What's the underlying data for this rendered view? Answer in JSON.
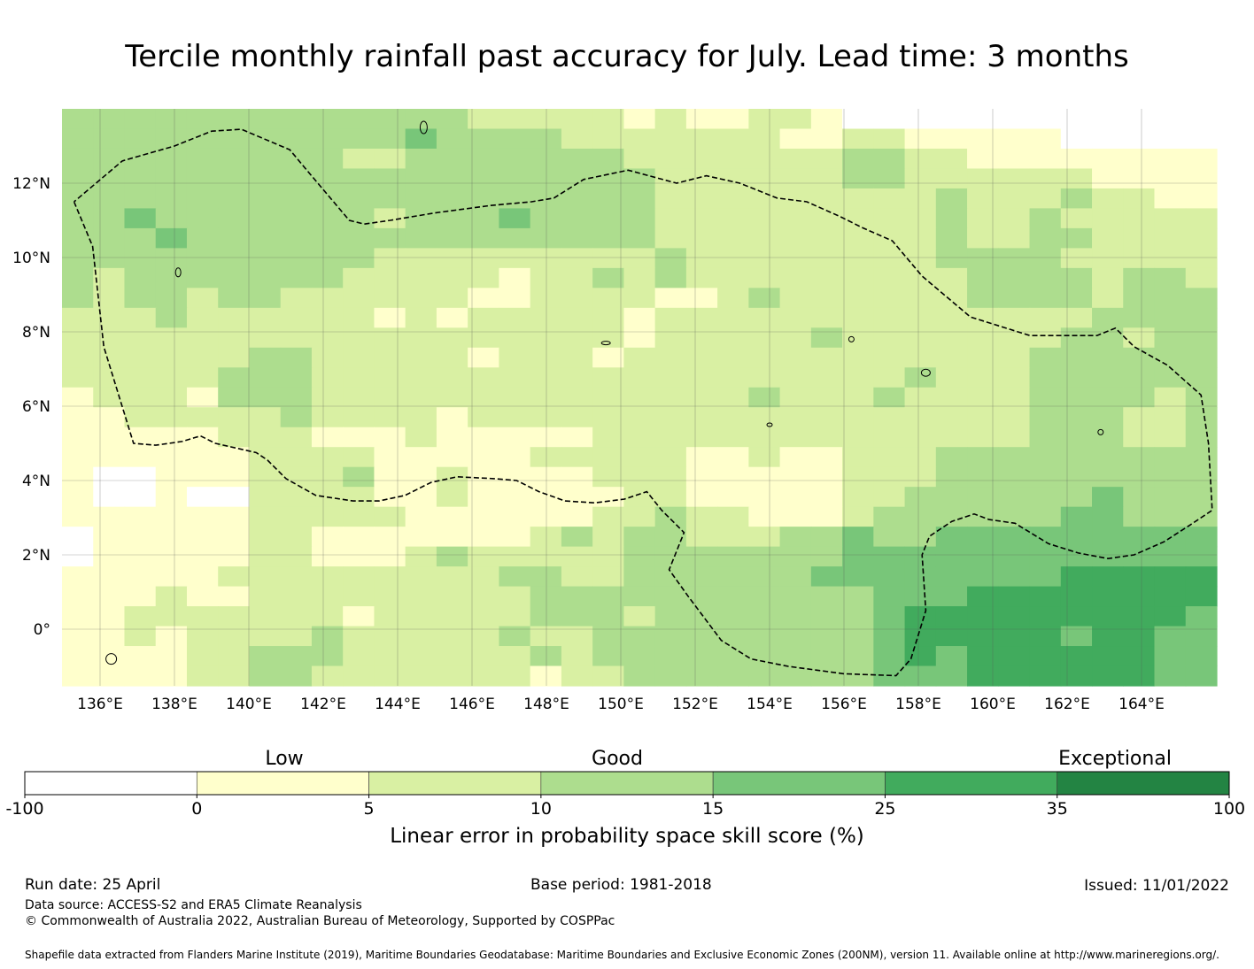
{
  "title": "Tercile monthly rainfall past accuracy for July. Lead time: 3 months",
  "map": {
    "lon_range": [
      135,
      166
    ],
    "lat_range": [
      -1.5,
      14
    ],
    "lon_ticks": [
      "136°E",
      "138°E",
      "140°E",
      "142°E",
      "144°E",
      "146°E",
      "148°E",
      "150°E",
      "152°E",
      "154°E",
      "156°E",
      "158°E",
      "160°E",
      "162°E",
      "164°E"
    ],
    "lat_ticks": [
      "12°N",
      "10°N",
      "8°N",
      "6°N",
      "4°N",
      "2°N",
      "0°"
    ],
    "boundary_path_lonlat": [
      [
        135.3,
        11.5
      ],
      [
        135.8,
        10.3
      ],
      [
        136.1,
        7.6
      ],
      [
        136.9,
        5.0
      ],
      [
        137.5,
        4.95
      ],
      [
        138.2,
        5.05
      ],
      [
        138.7,
        5.2
      ],
      [
        139.1,
        5.0
      ],
      [
        140.2,
        4.75
      ],
      [
        140.5,
        4.55
      ],
      [
        141.0,
        4.05
      ],
      [
        141.8,
        3.6
      ],
      [
        142.8,
        3.45
      ],
      [
        143.5,
        3.45
      ],
      [
        144.2,
        3.6
      ],
      [
        144.9,
        3.95
      ],
      [
        145.6,
        4.1
      ],
      [
        146.6,
        4.05
      ],
      [
        147.2,
        4.0
      ],
      [
        147.8,
        3.7
      ],
      [
        148.5,
        3.45
      ],
      [
        149.3,
        3.4
      ],
      [
        150.1,
        3.5
      ],
      [
        150.7,
        3.7
      ],
      [
        151.1,
        3.2
      ],
      [
        151.7,
        2.6
      ],
      [
        151.3,
        1.6
      ],
      [
        151.8,
        0.9
      ],
      [
        152.7,
        -0.3
      ],
      [
        153.5,
        -0.8
      ],
      [
        154.5,
        -1.0
      ],
      [
        156.0,
        -1.2
      ],
      [
        157.4,
        -1.25
      ],
      [
        157.8,
        -0.8
      ],
      [
        158.2,
        0.5
      ],
      [
        158.1,
        2.0
      ],
      [
        158.3,
        2.5
      ],
      [
        158.9,
        2.9
      ],
      [
        159.5,
        3.1
      ],
      [
        159.9,
        2.95
      ],
      [
        160.6,
        2.85
      ],
      [
        161.5,
        2.3
      ],
      [
        162.3,
        2.05
      ],
      [
        163.1,
        1.9
      ],
      [
        163.8,
        2.0
      ],
      [
        164.6,
        2.35
      ],
      [
        165.3,
        2.8
      ],
      [
        165.9,
        3.2
      ],
      [
        165.8,
        5.0
      ],
      [
        165.6,
        6.3
      ],
      [
        164.7,
        7.1
      ],
      [
        163.8,
        7.6
      ],
      [
        163.3,
        8.1
      ],
      [
        162.8,
        7.9
      ],
      [
        161.0,
        7.9
      ],
      [
        159.4,
        8.4
      ],
      [
        158.1,
        9.5
      ],
      [
        157.3,
        10.45
      ],
      [
        156.5,
        10.8
      ],
      [
        155.9,
        11.1
      ],
      [
        155.0,
        11.5
      ],
      [
        154.2,
        11.6
      ],
      [
        153.2,
        12.0
      ],
      [
        152.3,
        12.2
      ],
      [
        151.5,
        12.0
      ],
      [
        150.2,
        12.35
      ],
      [
        149.0,
        12.1
      ],
      [
        148.2,
        11.6
      ],
      [
        147.6,
        11.5
      ],
      [
        146.5,
        11.4
      ],
      [
        145.0,
        11.2
      ],
      [
        143.8,
        11.0
      ],
      [
        143.1,
        10.9
      ],
      [
        142.7,
        11.0
      ],
      [
        141.6,
        12.3
      ],
      [
        141.1,
        12.9
      ],
      [
        139.8,
        13.45
      ],
      [
        139.0,
        13.4
      ],
      [
        138.0,
        13.0
      ],
      [
        136.6,
        12.6
      ],
      [
        135.3,
        11.5
      ]
    ],
    "grid_cells": [
      [
        3,
        3,
        3,
        3,
        3,
        3,
        3,
        3,
        3,
        3,
        3,
        3,
        3,
        2,
        2,
        2,
        2,
        2,
        1,
        2,
        1,
        1,
        2,
        2,
        1,
        0,
        0,
        0,
        0,
        0,
        0,
        0,
        0,
        0,
        0,
        0,
        0
      ],
      [
        3,
        3,
        3,
        3,
        3,
        3,
        3,
        3,
        3,
        3,
        3,
        4,
        3,
        3,
        3,
        3,
        2,
        2,
        2,
        2,
        2,
        2,
        2,
        1,
        1,
        2,
        2,
        1,
        1,
        1,
        1,
        1,
        0,
        0,
        0,
        0,
        0
      ],
      [
        3,
        3,
        3,
        3,
        3,
        3,
        3,
        3,
        3,
        2,
        2,
        3,
        3,
        3,
        3,
        3,
        3,
        3,
        2,
        2,
        2,
        2,
        2,
        2,
        2,
        3,
        3,
        2,
        2,
        1,
        1,
        1,
        1,
        1,
        1,
        1,
        1
      ],
      [
        3,
        3,
        3,
        3,
        3,
        3,
        3,
        3,
        3,
        3,
        3,
        3,
        3,
        3,
        3,
        3,
        3,
        3,
        3,
        2,
        2,
        2,
        2,
        2,
        2,
        3,
        3,
        2,
        2,
        2,
        2,
        2,
        2,
        1,
        1,
        1,
        1
      ],
      [
        3,
        3,
        3,
        3,
        3,
        3,
        3,
        3,
        3,
        3,
        3,
        3,
        3,
        3,
        3,
        3,
        3,
        3,
        3,
        2,
        2,
        2,
        2,
        2,
        2,
        2,
        2,
        2,
        3,
        2,
        2,
        2,
        3,
        2,
        2,
        1,
        1
      ],
      [
        3,
        3,
        4,
        3,
        3,
        3,
        3,
        3,
        3,
        3,
        2,
        3,
        3,
        3,
        4,
        3,
        3,
        3,
        3,
        2,
        2,
        2,
        2,
        2,
        2,
        2,
        2,
        2,
        3,
        2,
        2,
        3,
        2,
        2,
        2,
        2,
        2
      ],
      [
        3,
        3,
        3,
        4,
        3,
        3,
        3,
        3,
        3,
        3,
        3,
        3,
        3,
        3,
        3,
        3,
        3,
        3,
        3,
        2,
        2,
        2,
        2,
        2,
        2,
        2,
        2,
        2,
        3,
        2,
        2,
        3,
        3,
        2,
        2,
        2,
        2
      ],
      [
        3,
        3,
        3,
        3,
        3,
        3,
        3,
        3,
        3,
        3,
        2,
        2,
        2,
        2,
        2,
        2,
        2,
        2,
        2,
        3,
        2,
        2,
        2,
        2,
        2,
        2,
        2,
        2,
        3,
        3,
        3,
        3,
        2,
        2,
        2,
        2,
        2
      ],
      [
        3,
        2,
        3,
        3,
        3,
        3,
        3,
        3,
        3,
        2,
        2,
        2,
        2,
        2,
        1,
        2,
        2,
        3,
        2,
        3,
        2,
        2,
        2,
        2,
        2,
        2,
        2,
        2,
        2,
        3,
        3,
        3,
        3,
        2,
        3,
        3,
        2
      ],
      [
        3,
        2,
        3,
        3,
        2,
        3,
        3,
        2,
        2,
        2,
        2,
        2,
        2,
        1,
        1,
        2,
        2,
        2,
        2,
        1,
        1,
        2,
        3,
        2,
        2,
        2,
        2,
        2,
        2,
        3,
        3,
        3,
        3,
        2,
        3,
        3,
        3
      ],
      [
        2,
        2,
        2,
        3,
        2,
        2,
        2,
        2,
        2,
        2,
        1,
        2,
        1,
        2,
        2,
        2,
        2,
        2,
        1,
        2,
        2,
        2,
        2,
        2,
        2,
        2,
        2,
        2,
        2,
        2,
        2,
        2,
        2,
        3,
        3,
        3,
        3
      ],
      [
        2,
        2,
        2,
        2,
        2,
        2,
        2,
        2,
        2,
        2,
        2,
        2,
        2,
        2,
        2,
        2,
        2,
        2,
        1,
        2,
        2,
        2,
        2,
        2,
        3,
        2,
        2,
        2,
        2,
        2,
        2,
        2,
        3,
        3,
        2,
        3,
        3
      ],
      [
        2,
        2,
        2,
        2,
        2,
        2,
        3,
        3,
        2,
        2,
        2,
        2,
        2,
        1,
        2,
        2,
        2,
        1,
        2,
        2,
        2,
        2,
        2,
        2,
        2,
        2,
        2,
        2,
        2,
        2,
        2,
        3,
        3,
        3,
        3,
        3,
        3
      ],
      [
        2,
        2,
        2,
        2,
        2,
        3,
        3,
        3,
        2,
        2,
        2,
        2,
        2,
        2,
        2,
        2,
        2,
        2,
        2,
        2,
        2,
        2,
        2,
        2,
        2,
        2,
        2,
        3,
        2,
        2,
        2,
        3,
        3,
        3,
        3,
        3,
        3
      ],
      [
        1,
        2,
        2,
        2,
        1,
        3,
        3,
        3,
        2,
        2,
        2,
        2,
        2,
        2,
        2,
        2,
        2,
        2,
        2,
        2,
        2,
        2,
        3,
        2,
        2,
        2,
        3,
        2,
        2,
        2,
        2,
        3,
        3,
        3,
        3,
        2,
        3
      ],
      [
        1,
        1,
        2,
        2,
        2,
        2,
        2,
        3,
        2,
        2,
        2,
        2,
        1,
        2,
        2,
        2,
        2,
        2,
        2,
        2,
        2,
        2,
        2,
        2,
        2,
        2,
        2,
        2,
        2,
        2,
        2,
        3,
        3,
        3,
        2,
        2,
        3
      ],
      [
        1,
        1,
        1,
        1,
        1,
        2,
        2,
        2,
        1,
        1,
        1,
        2,
        1,
        1,
        1,
        1,
        1,
        2,
        2,
        2,
        2,
        2,
        2,
        2,
        2,
        2,
        2,
        2,
        2,
        2,
        2,
        3,
        3,
        3,
        2,
        2,
        3
      ],
      [
        1,
        1,
        1,
        1,
        1,
        1,
        2,
        2,
        2,
        2,
        1,
        1,
        1,
        1,
        1,
        2,
        2,
        2,
        2,
        2,
        1,
        1,
        2,
        1,
        1,
        2,
        2,
        2,
        3,
        3,
        3,
        3,
        3,
        3,
        3,
        3,
        3
      ],
      [
        1,
        0,
        0,
        1,
        1,
        1,
        2,
        2,
        2,
        3,
        1,
        1,
        2,
        1,
        1,
        1,
        1,
        2,
        2,
        2,
        1,
        1,
        1,
        1,
        1,
        2,
        2,
        2,
        3,
        3,
        3,
        3,
        3,
        3,
        3,
        3,
        3
      ],
      [
        1,
        0,
        0,
        1,
        0,
        0,
        2,
        2,
        2,
        2,
        1,
        1,
        2,
        1,
        1,
        1,
        1,
        1,
        2,
        2,
        1,
        1,
        1,
        1,
        1,
        2,
        2,
        3,
        3,
        3,
        3,
        3,
        3,
        4,
        3,
        3,
        3
      ],
      [
        1,
        1,
        1,
        1,
        1,
        1,
        2,
        2,
        2,
        2,
        2,
        1,
        1,
        1,
        1,
        1,
        1,
        2,
        2,
        3,
        2,
        2,
        1,
        1,
        1,
        2,
        3,
        3,
        3,
        3,
        3,
        3,
        4,
        4,
        3,
        3,
        3
      ],
      [
        0,
        1,
        1,
        1,
        1,
        1,
        2,
        2,
        1,
        1,
        1,
        1,
        1,
        1,
        1,
        2,
        3,
        2,
        3,
        3,
        2,
        2,
        2,
        3,
        3,
        4,
        3,
        3,
        4,
        4,
        4,
        4,
        4,
        4,
        4,
        4,
        4
      ],
      [
        0,
        1,
        1,
        1,
        1,
        1,
        2,
        2,
        1,
        1,
        1,
        2,
        3,
        2,
        2,
        2,
        2,
        2,
        3,
        3,
        3,
        3,
        3,
        3,
        3,
        4,
        4,
        4,
        4,
        4,
        4,
        4,
        4,
        4,
        4,
        4,
        4
      ],
      [
        1,
        1,
        1,
        1,
        1,
        2,
        2,
        2,
        2,
        2,
        2,
        2,
        2,
        2,
        3,
        3,
        2,
        2,
        3,
        3,
        3,
        3,
        3,
        3,
        4,
        4,
        4,
        4,
        4,
        4,
        4,
        4,
        5,
        5,
        5,
        5,
        5
      ],
      [
        1,
        1,
        1,
        2,
        1,
        1,
        2,
        2,
        2,
        2,
        2,
        2,
        2,
        2,
        2,
        3,
        3,
        3,
        3,
        3,
        3,
        3,
        3,
        3,
        3,
        3,
        4,
        4,
        4,
        5,
        5,
        5,
        5,
        5,
        5,
        5,
        5
      ],
      [
        1,
        1,
        2,
        2,
        2,
        2,
        2,
        2,
        2,
        1,
        2,
        2,
        2,
        2,
        2,
        3,
        3,
        3,
        2,
        3,
        3,
        3,
        3,
        3,
        3,
        3,
        4,
        5,
        5,
        5,
        5,
        5,
        5,
        5,
        5,
        5,
        4
      ],
      [
        1,
        1,
        2,
        1,
        2,
        2,
        2,
        2,
        3,
        2,
        2,
        2,
        2,
        2,
        3,
        2,
        2,
        3,
        3,
        3,
        3,
        3,
        3,
        3,
        3,
        3,
        4,
        5,
        5,
        5,
        5,
        5,
        4,
        5,
        5,
        4,
        4
      ],
      [
        1,
        1,
        1,
        1,
        2,
        2,
        3,
        3,
        3,
        2,
        2,
        2,
        2,
        2,
        2,
        3,
        2,
        3,
        3,
        3,
        3,
        3,
        3,
        3,
        3,
        3,
        4,
        5,
        4,
        5,
        5,
        5,
        5,
        5,
        5,
        4,
        4
      ],
      [
        1,
        1,
        1,
        1,
        2,
        2,
        3,
        3,
        2,
        2,
        2,
        2,
        2,
        2,
        2,
        1,
        2,
        2,
        3,
        3,
        3,
        3,
        3,
        3,
        3,
        3,
        4,
        4,
        4,
        5,
        5,
        5,
        5,
        5,
        5,
        4,
        4
      ]
    ]
  },
  "colorbar": {
    "labels": [
      "Low",
      "Good",
      "Exceptional"
    ],
    "ticks": [
      "-100",
      "0",
      "5",
      "10",
      "15",
      "25",
      "35",
      "100"
    ],
    "colors": [
      "#ffffff",
      "#ffffcc",
      "#d9f0a3",
      "#addd8e",
      "#78c679",
      "#41ab5d",
      "#238443"
    ],
    "axis_label": "Linear error in probability space skill score (%)"
  },
  "footer": {
    "run_date": "Run date: 25 April",
    "base_period": "Base period: 1981-2018",
    "issued": "Issued: 11/01/2022",
    "data_source": "Data source: ACCESS-S2 and ERA5 Climate Reanalysis",
    "copyright": "© Commonwealth of Australia 2022, Australian Bureau of Meteorology, Supported by COSPPac",
    "shapefile": "Shapefile data extracted from Flanders Marine Institute (2019), Maritime Boundaries Geodatabase: Maritime Boundaries and Exclusive Economic Zones (200NM), version 11. Available online at http://www.marineregions.org/."
  }
}
